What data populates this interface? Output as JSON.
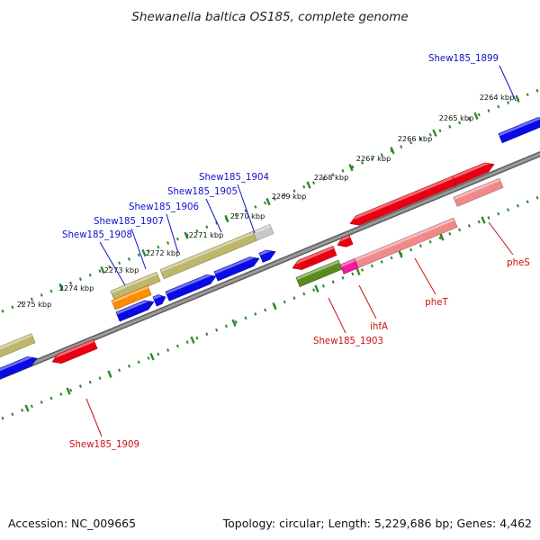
{
  "title": "Shewanella baltica OS185, complete genome",
  "footer": {
    "accession": "Accession: NC_009665",
    "stats": "Topology: circular; Length: 5,229,686 bp; Genes: 4,462"
  },
  "colors": {
    "backbone": "#777777",
    "ticks": "#2a8a2a",
    "forward_label": "#1010c8",
    "reverse_label": "#cc1010",
    "cds_blue": "#0a0ae6",
    "cds_red": "#e80010",
    "rrna_olive": "#bdb76b",
    "pseudo_grey": "#c8c8c8",
    "orange": "#ff8c00",
    "dark_olive": "#5a8a20",
    "pink_light": "#f08a8a",
    "magenta": "#ee1c98"
  },
  "kbp_labels": [
    "2264 kbp",
    "2265 kbp",
    "2266 kbp",
    "2267 kbp",
    "2268 kbp",
    "2269 kbp",
    "2270 kbp",
    "2271 kbp",
    "2272 kbp",
    "2273 kbp",
    "2274 kbp",
    "2275 kbp"
  ],
  "gene_labels": {
    "forward": [
      "Shew185_1899",
      "Shew185_1904",
      "Shew185_1905",
      "Shew185_1906",
      "Shew185_1907",
      "Shew185_1908"
    ],
    "reverse": [
      "pheS",
      "pheT",
      "ihfA",
      "Shew185_1903",
      "Shew185_1909"
    ]
  }
}
